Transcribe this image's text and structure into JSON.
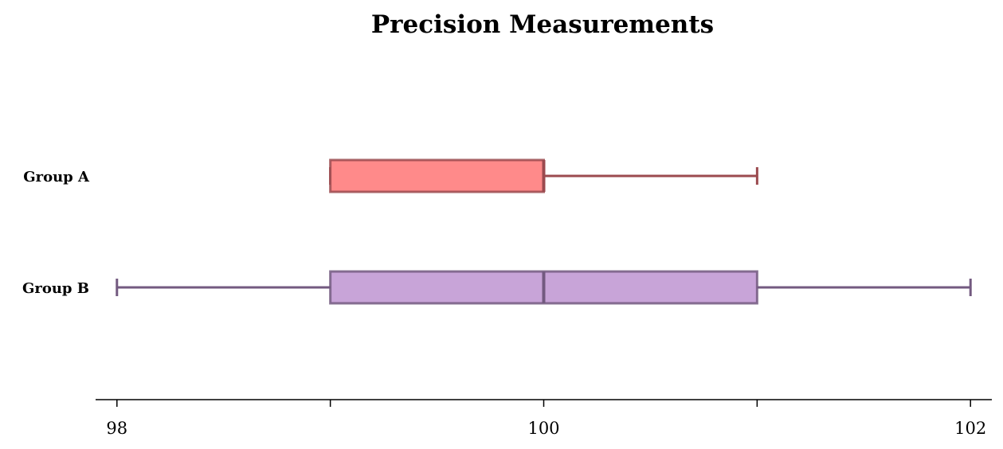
{
  "chart_data": {
    "type": "boxplot",
    "orientation": "horizontal",
    "title": "Precision Measurements",
    "xlabel": "",
    "ylabel": "",
    "xlim": [
      97.9,
      102.1
    ],
    "x_ticks": [
      98,
      99,
      100,
      101,
      102
    ],
    "x_tick_labels": [
      "98",
      "",
      "100",
      "",
      "102"
    ],
    "grid": false,
    "series": [
      {
        "name": "Group A",
        "whisker_low": 99,
        "q1": 99,
        "median": 100,
        "q3": 100,
        "whisker_high": 101,
        "fill_color": "#ff8a8a",
        "line_color": "#9b4a4f"
      },
      {
        "name": "Group B",
        "whisker_low": 98,
        "q1": 99,
        "median": 100,
        "q3": 101,
        "whisker_high": 102,
        "fill_color": "#c8a4d8",
        "line_color": "#735a80"
      }
    ]
  }
}
